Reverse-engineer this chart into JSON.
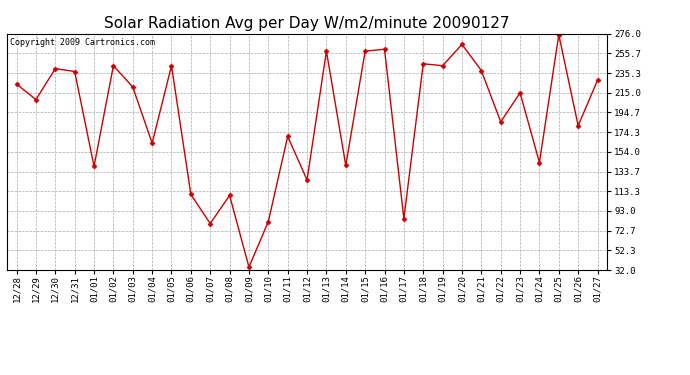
{
  "title": "Solar Radiation Avg per Day W/m2/minute 20090127",
  "copyright": "Copyright 2009 Cartronics.com",
  "dates": [
    "12/28",
    "12/29",
    "12/30",
    "12/31",
    "01/01",
    "01/02",
    "01/03",
    "01/04",
    "01/05",
    "01/06",
    "01/07",
    "01/08",
    "01/09",
    "01/10",
    "01/11",
    "01/12",
    "01/13",
    "01/14",
    "01/15",
    "01/16",
    "01/17",
    "01/18",
    "01/19",
    "01/20",
    "01/21",
    "01/22",
    "01/23",
    "01/24",
    "01/25",
    "01/26",
    "01/27"
  ],
  "values": [
    224,
    208,
    240,
    237,
    139,
    243,
    221,
    163,
    243,
    110,
    80,
    109,
    35,
    82,
    170,
    125,
    258,
    140,
    258,
    260,
    85,
    245,
    243,
    265,
    238,
    185,
    215,
    143,
    275,
    181,
    228
  ],
  "line_color": "#cc0000",
  "marker": "D",
  "marker_size": 2.5,
  "bg_color": "#ffffff",
  "grid_color": "#aaaaaa",
  "yticks": [
    32.0,
    52.3,
    72.7,
    93.0,
    113.3,
    133.7,
    154.0,
    174.3,
    194.7,
    215.0,
    235.3,
    255.7,
    276.0
  ],
  "ylim": [
    32.0,
    276.0
  ],
  "title_fontsize": 11,
  "copyright_fontsize": 6,
  "tick_fontsize": 6.5
}
